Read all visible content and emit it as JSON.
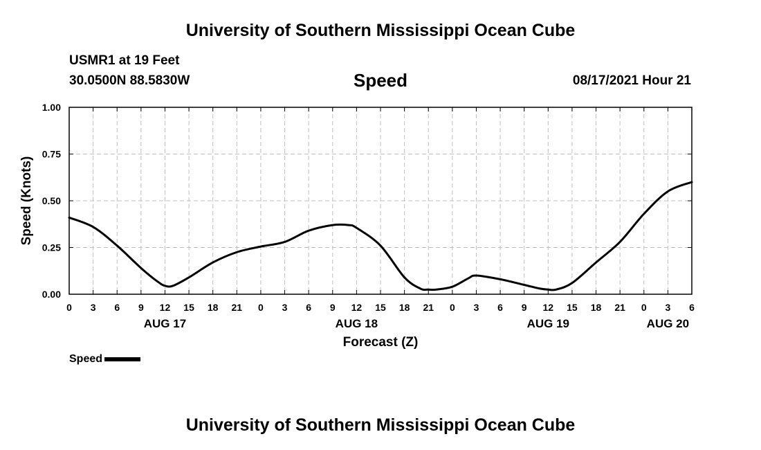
{
  "header": {
    "title": "University of Southern Mississippi Ocean Cube",
    "station": "USMR1 at 19 Feet",
    "coords": "30.0500N  88.5830W",
    "chart_name": "Speed",
    "datetime": "08/17/2021 Hour 21"
  },
  "legend": {
    "label": "Speed"
  },
  "footer": {
    "title": "University of Southern Mississippi Ocean Cube"
  },
  "colors": {
    "line": "#000000",
    "grid": "#bfbfbf",
    "background": "#ffffff"
  },
  "chart_data": {
    "type": "line",
    "title": "Speed",
    "xlabel": "Forecast (Z)",
    "ylabel": "Speed (Knots)",
    "x_unit": "hours since 00Z Aug 17, 2021",
    "xlim": [
      0,
      78
    ],
    "ylim": [
      0,
      1
    ],
    "grid": true,
    "yticks": [
      0,
      0.25,
      0.5,
      0.75,
      1.0
    ],
    "ytick_labels": [
      "0.00",
      "0.25",
      "0.50",
      "0.75",
      "1.00"
    ],
    "xticks": [
      0,
      3,
      6,
      9,
      12,
      15,
      18,
      21,
      24,
      27,
      30,
      33,
      36,
      39,
      42,
      45,
      48,
      51,
      54,
      57,
      60,
      63,
      66,
      69,
      72,
      75,
      78
    ],
    "xtick_labels": [
      "0",
      "3",
      "6",
      "9",
      "12",
      "15",
      "18",
      "21",
      "0",
      "3",
      "6",
      "9",
      "12",
      "15",
      "18",
      "21",
      "0",
      "3",
      "6",
      "9",
      "12",
      "15",
      "18",
      "21",
      "0",
      "3",
      "6"
    ],
    "date_labels": [
      {
        "x": 12,
        "label": "AUG 17"
      },
      {
        "x": 36,
        "label": "AUG 18"
      },
      {
        "x": 60,
        "label": "AUG 19"
      },
      {
        "x": 75,
        "label": "AUG 20"
      }
    ],
    "series": [
      {
        "name": "Speed",
        "x": [
          0,
          3,
          6,
          9,
          11,
          12,
          13,
          15,
          18,
          21,
          24,
          27,
          30,
          33,
          35,
          36,
          39,
          42,
          44,
          45,
          46,
          48,
          50,
          51,
          54,
          57,
          59,
          60,
          61,
          63,
          66,
          69,
          72,
          75,
          78
        ],
        "values": [
          0.41,
          0.36,
          0.26,
          0.14,
          0.07,
          0.045,
          0.045,
          0.09,
          0.17,
          0.225,
          0.255,
          0.28,
          0.34,
          0.37,
          0.37,
          0.355,
          0.26,
          0.09,
          0.03,
          0.025,
          0.025,
          0.04,
          0.085,
          0.1,
          0.08,
          0.05,
          0.03,
          0.025,
          0.025,
          0.06,
          0.17,
          0.28,
          0.43,
          0.55,
          0.6
        ]
      }
    ]
  }
}
